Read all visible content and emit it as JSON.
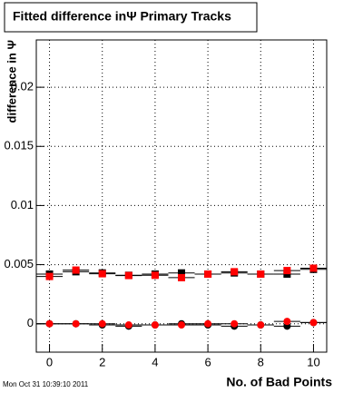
{
  "chart_data": {
    "type": "scatter",
    "title": "Fitted difference inΨ  Primary Tracks",
    "x_label": "No. of Bad Points",
    "y_label": "difference in Ψ",
    "timestamp": "Mon Oct 31 10:39:10 2011",
    "x": [
      0,
      1,
      2,
      3,
      4,
      5,
      6,
      7,
      8,
      9,
      10
    ],
    "series": [
      {
        "name": "black squares",
        "marker": "square",
        "color": "#000000",
        "values": [
          0.0042,
          0.0044,
          0.0043,
          0.0041,
          0.0042,
          0.0043,
          0.0042,
          0.0043,
          0.0042,
          0.0042,
          0.0046
        ]
      },
      {
        "name": "red squares",
        "marker": "square",
        "color": "#ff0000",
        "values": [
          0.004,
          0.00454,
          0.00423,
          0.00408,
          0.0041,
          0.0039,
          0.0042,
          0.0044,
          0.0042,
          0.0045,
          0.0047
        ]
      },
      {
        "name": "black circles",
        "marker": "circle",
        "color": "#000000",
        "values": [
          0.0,
          0.0,
          -0.0001,
          -0.0002,
          -0.0001,
          0.0,
          -0.0001,
          -0.0002,
          -0.0001,
          -0.0002,
          0.0001
        ]
      },
      {
        "name": "red circles",
        "marker": "circle",
        "color": "#ff0000",
        "values": [
          0.0,
          0.0,
          0.0,
          -0.0001,
          -0.0001,
          -0.0001,
          0.0,
          0.0,
          -0.0001,
          0.0002,
          0.0001
        ]
      }
    ],
    "xlim": [
      -0.5,
      10.5
    ],
    "xticks": [
      0,
      2,
      4,
      6,
      8,
      10
    ],
    "ylim": [
      -0.0024,
      0.024
    ],
    "yticks": [
      0,
      0.005,
      0.01,
      0.015,
      0.02
    ],
    "grid": true
  }
}
